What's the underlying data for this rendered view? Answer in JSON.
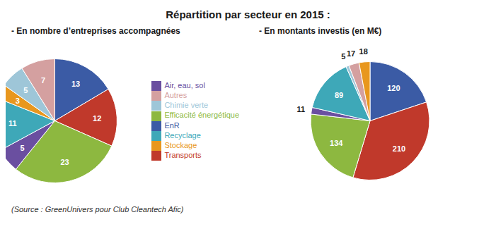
{
  "chart_data": [
    {
      "type": "pie",
      "title": "Répartition par secteur en 2015 :",
      "subtitle": "- En nombre d’entreprises accompagnées",
      "categories": [
        "EnR",
        "Transports",
        "Efficacité énergétique",
        "Air, eau, sol",
        "Recyclage",
        "Stockage",
        "Chimie verte",
        "Autres"
      ],
      "values": [
        13,
        12,
        23,
        5,
        11,
        3,
        5,
        7
      ],
      "colors": [
        "#3B5BA5",
        "#C0392B",
        "#8DB840",
        "#6A4FA0",
        "#3EA8B8",
        "#E8971E",
        "#9EC6D8",
        "#D4A0A0"
      ],
      "data_labels": true,
      "legend": "right",
      "annotations": [
        "(Source : GreenUnivers pour Club Cleantech Afic)"
      ]
    },
    {
      "type": "pie",
      "subtitle": "- En montants investis (en M€)",
      "values": [
        120,
        210,
        134,
        11,
        89,
        5,
        17,
        18
      ],
      "colors": [
        "#3B5BA5",
        "#C0392B",
        "#8DB840",
        "#6A4FA0",
        "#3EA8B8",
        "#9EC6D8",
        "#D4A0A0",
        "#E8971E"
      ],
      "data_labels": true
    }
  ]
}
